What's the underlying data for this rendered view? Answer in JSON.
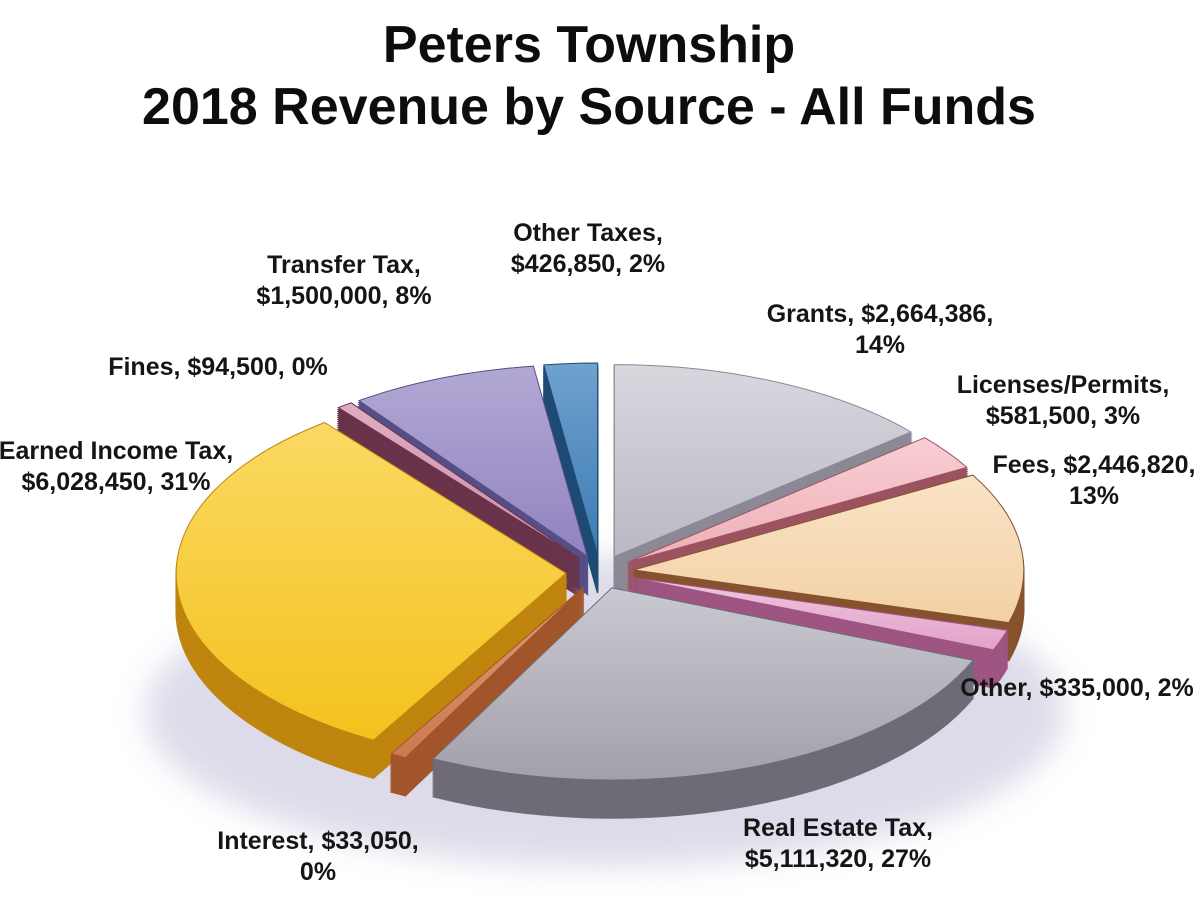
{
  "title": {
    "line1": "Peters Township",
    "line2": "2018 Revenue by Source - All Funds"
  },
  "chart_data": {
    "type": "pie",
    "style": "3d-exploded",
    "title": "Peters Township 2018 Revenue by Source - All Funds",
    "unit": "USD",
    "legend_position": "none",
    "background_color": "#ffffff",
    "shadow_color": "#ccc9de",
    "slices": [
      {
        "id": "grants",
        "name": "Grants",
        "value": 2664386,
        "percent": "14%",
        "label_line1": "Grants, $2,664,386,",
        "label_line2": "14%",
        "color": "#bab8c3",
        "light": "#d8d7de",
        "wall": "#8b8995"
      },
      {
        "id": "licenses",
        "name": "Licenses/Permits",
        "value": 581500,
        "percent": "3%",
        "label_line1": "Licenses/Permits,",
        "label_line2": "$581,500, 3%",
        "color": "#efaeb6",
        "light": "#f7cfd4",
        "wall": "#9c5360"
      },
      {
        "id": "fees",
        "name": "Fees",
        "value": 2446820,
        "percent": "13%",
        "label_line1": "Fees, $2,446,820,",
        "label_line2": "13%",
        "color": "#f3d0a4",
        "light": "#f9e4c6",
        "wall": "#86522f"
      },
      {
        "id": "other",
        "name": "Other",
        "value": 335000,
        "percent": "2%",
        "label_line1": "Other, $335,000, 2%",
        "label_line2": "",
        "color": "#e2a2c9",
        "light": "#efc6de",
        "wall": "#9e5582"
      },
      {
        "id": "ret",
        "name": "Real Estate Tax",
        "value": 5111320,
        "percent": "27%",
        "label_line1": "Real Estate Tax,",
        "label_line2": "$5,111,320, 27%",
        "color": "#a3a0aa",
        "light": "#cac8d1",
        "wall": "#6e6b77"
      },
      {
        "id": "interest",
        "name": "Interest",
        "value": 33050,
        "percent": "0%",
        "label_line1": "Interest, $33,050,",
        "label_line2": "0%",
        "color": "#cc7a4e",
        "light": "#df9b73",
        "wall": "#a2552b"
      },
      {
        "id": "eit",
        "name": "Earned Income Tax",
        "value": 6028450,
        "percent": "31%",
        "label_line1": "Earned Income Tax,",
        "label_line2": "$6,028,450, 31%",
        "color": "#f4c21d",
        "light": "#fad963",
        "wall": "#bf850e"
      },
      {
        "id": "fines",
        "name": "Fines",
        "value": 94500,
        "percent": "0%",
        "label_line1": "Fines, $94,500, 0%",
        "label_line2": "",
        "color": "#cd8ea9",
        "light": "#deadc1",
        "wall": "#69334b"
      },
      {
        "id": "transfer",
        "name": "Transfer Tax",
        "value": 1500000,
        "percent": "8%",
        "label_line1": "Transfer Tax,",
        "label_line2": "$1,500,000, 8%",
        "color": "#9184bf",
        "light": "#b2a8d4",
        "wall": "#564e86"
      },
      {
        "id": "other_taxes",
        "name": "Other Taxes",
        "value": 426850,
        "percent": "2%",
        "label_line1": "Other Taxes,",
        "label_line2": "$426,850, 2%",
        "color": "#3d7ab4",
        "light": "#6fa2cd",
        "wall": "#1e4a74"
      }
    ]
  }
}
